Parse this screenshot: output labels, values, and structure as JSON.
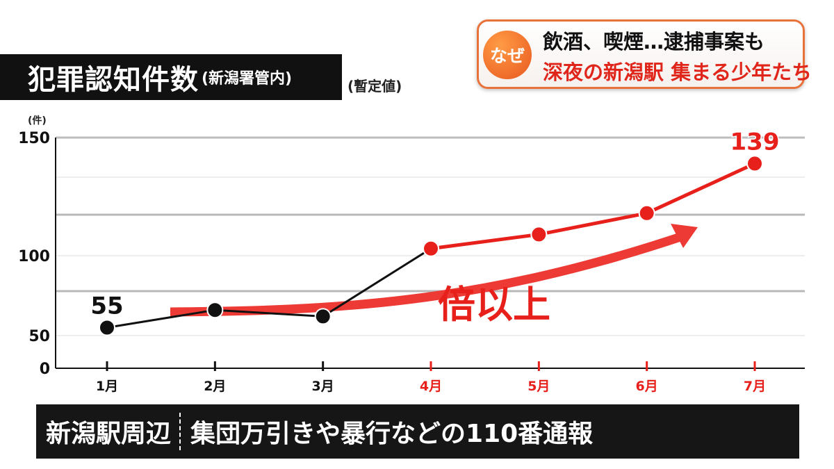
{
  "title": {
    "main": "犯罪認知件数",
    "sub": "(新潟署管内)",
    "note": "(暫定値)"
  },
  "badge": {
    "circle": "なぜ",
    "line1": "飲酒、喫煙…逮捕事案も",
    "line2": "深夜の新潟駅 集まる少年たち"
  },
  "bottom": {
    "left": "新潟駅周辺",
    "right": "集団万引きや暴行などの110番通報"
  },
  "colors": {
    "black_series": "#111111",
    "red_series": "#e8201b",
    "arrow": "#ee3a35"
  },
  "chart_data": {
    "type": "line",
    "unit_label": "(件)",
    "categories": [
      "1月",
      "2月",
      "3月",
      "4月",
      "5月",
      "6月",
      "7月"
    ],
    "values": [
      55,
      66,
      62,
      103,
      109,
      118,
      139
    ],
    "highlight_from_index": 3,
    "data_labels": [
      {
        "index": 0,
        "text": "55"
      },
      {
        "index": 6,
        "text": "139"
      }
    ],
    "yticks": [
      0,
      50,
      100,
      150
    ],
    "ylim": [
      0,
      150
    ],
    "grid": true,
    "annotation": "倍以上"
  }
}
